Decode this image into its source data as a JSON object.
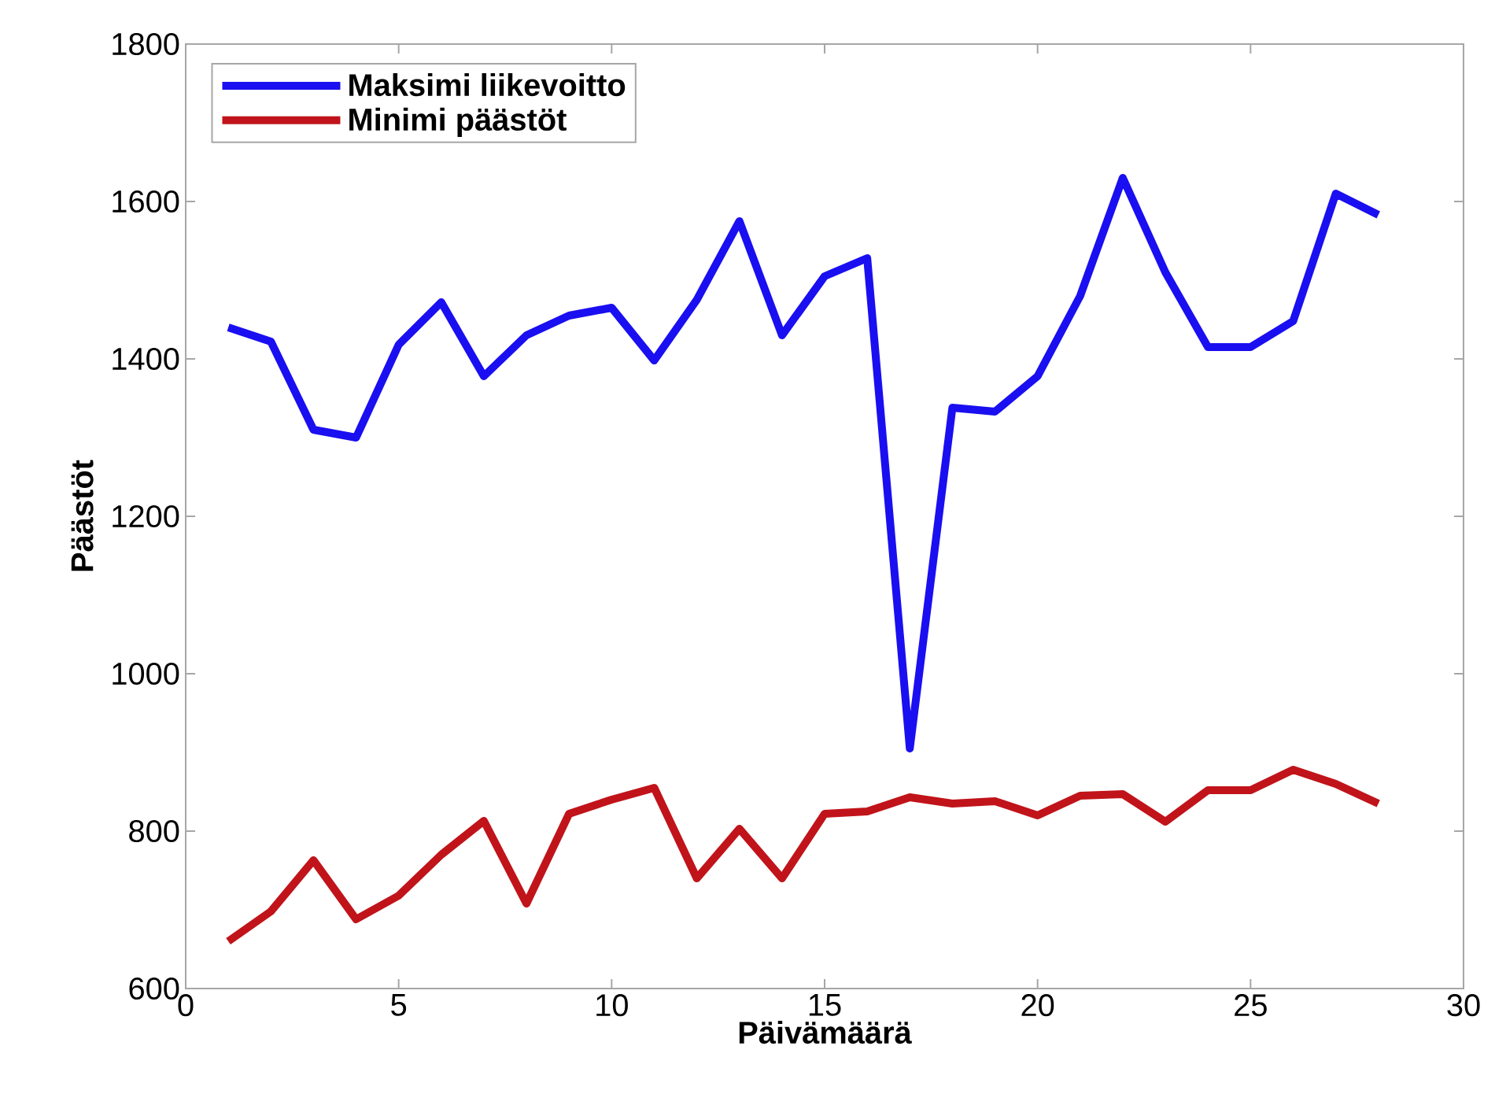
{
  "chart_data": {
    "type": "line",
    "xlabel": "Päivämäärä",
    "ylabel": "Päästöt",
    "x": [
      1,
      2,
      3,
      4,
      5,
      6,
      7,
      8,
      9,
      10,
      11,
      12,
      13,
      14,
      15,
      16,
      17,
      18,
      19,
      20,
      21,
      22,
      23,
      24,
      25,
      26,
      27,
      28
    ],
    "series": [
      {
        "name": "Maksimi liikevoitto",
        "color": "#1a0ff0",
        "values": [
          1440,
          1422,
          1310,
          1300,
          1418,
          1472,
          1378,
          1430,
          1455,
          1465,
          1398,
          1475,
          1575,
          1430,
          1505,
          1528,
          905,
          1338,
          1333,
          1378,
          1480,
          1630,
          1510,
          1415,
          1415,
          1448,
          1610,
          1583
        ]
      },
      {
        "name": "Minimi päästöt",
        "color": "#c0141a",
        "values": [
          660,
          698,
          763,
          688,
          718,
          770,
          813,
          708,
          822,
          840,
          855,
          740,
          803,
          740,
          822,
          825,
          843,
          835,
          838,
          820,
          845,
          847,
          812,
          852,
          852,
          878,
          860,
          835
        ]
      }
    ],
    "xlim": [
      0,
      30
    ],
    "ylim": [
      600,
      1800
    ],
    "xticks": [
      0,
      5,
      10,
      15,
      20,
      25,
      30
    ],
    "yticks": [
      600,
      800,
      1000,
      1200,
      1400,
      1600,
      1800
    ],
    "legend": "top left",
    "grid": false,
    "marker": "none",
    "line_style": "solid"
  }
}
